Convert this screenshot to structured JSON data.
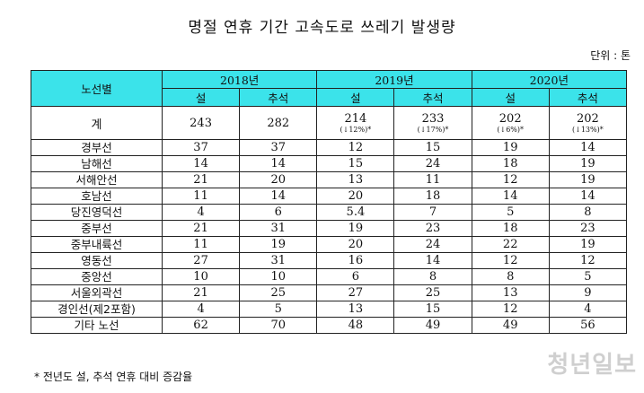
{
  "title": "명절 연휴 기간 고속도로 쓰레기 발생량",
  "unit": "단위 : 톤",
  "header": {
    "route_label": "노선별",
    "years": [
      "2018년",
      "2019년",
      "2020년"
    ],
    "sub": [
      "설",
      "추석",
      "설",
      "추석",
      "설",
      "추석"
    ]
  },
  "total": {
    "name": "계",
    "values": [
      "243",
      "282",
      "214",
      "233",
      "202",
      "202"
    ],
    "changes": [
      "",
      "",
      "(↓12%)*",
      "(↓17%)*",
      "(↓6%)*",
      "(↓13%)*"
    ]
  },
  "rows": [
    {
      "name": "경부선",
      "values": [
        "37",
        "37",
        "12",
        "15",
        "19",
        "14"
      ]
    },
    {
      "name": "남해선",
      "values": [
        "14",
        "14",
        "15",
        "24",
        "18",
        "19"
      ]
    },
    {
      "name": "서해안선",
      "values": [
        "21",
        "20",
        "13",
        "11",
        "12",
        "19"
      ]
    },
    {
      "name": "호남선",
      "values": [
        "11",
        "14",
        "20",
        "18",
        "14",
        "14"
      ]
    },
    {
      "name": "당진영덕선",
      "values": [
        "4",
        "6",
        "5.4",
        "7",
        "5",
        "8"
      ]
    },
    {
      "name": "중부선",
      "values": [
        "21",
        "31",
        "19",
        "23",
        "18",
        "23"
      ]
    },
    {
      "name": "중부내륙선",
      "values": [
        "11",
        "19",
        "20",
        "24",
        "22",
        "19"
      ]
    },
    {
      "name": "영동선",
      "values": [
        "27",
        "31",
        "16",
        "14",
        "12",
        "12"
      ]
    },
    {
      "name": "중앙선",
      "values": [
        "10",
        "10",
        "6",
        "8",
        "8",
        "5"
      ]
    },
    {
      "name": "서울외곽선",
      "values": [
        "21",
        "25",
        "27",
        "25",
        "13",
        "9"
      ]
    },
    {
      "name": "경인선(제2포함)",
      "values": [
        "4",
        "5",
        "13",
        "15",
        "12",
        "4"
      ]
    },
    {
      "name": "기타 노선",
      "values": [
        "62",
        "70",
        "48",
        "49",
        "49",
        "56"
      ]
    }
  ],
  "footnote": "* 전년도 설, 추석 연휴 대비 증감율",
  "watermark": "청년일보"
}
